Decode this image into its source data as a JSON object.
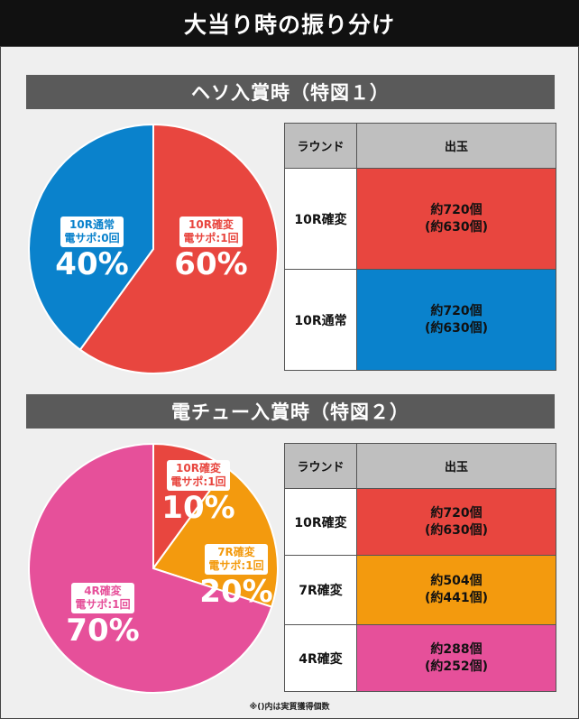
{
  "page": {
    "title": "大当り時の振り分け",
    "footnote": "※()内は実質獲得個数"
  },
  "colors": {
    "red": "#e8463f",
    "blue": "#0a82cc",
    "pink": "#e6509a",
    "orange": "#f39a0e",
    "gray_header": "#bfbfbf"
  },
  "sections": [
    {
      "heading": "ヘソ入賞時（特図１）",
      "chart_data": {
        "type": "pie",
        "slices": [
          {
            "line1": "10R確変",
            "line2": "電サポ:1回",
            "value": 60,
            "label": "60%",
            "color": "#e8463f"
          },
          {
            "line1": "10R通常",
            "line2": "電サポ:0回",
            "value": 40,
            "label": "40%",
            "color": "#0a82cc"
          }
        ]
      },
      "table": {
        "headers": [
          "ラウンド",
          "出玉"
        ],
        "rows": [
          {
            "round": "10R確変",
            "payout": "約720個",
            "real": "(約630個)",
            "color": "#e8463f"
          },
          {
            "round": "10R通常",
            "payout": "約720個",
            "real": "(約630個)",
            "color": "#0a82cc"
          }
        ]
      }
    },
    {
      "heading": "電チュー入賞時（特図２）",
      "chart_data": {
        "type": "pie",
        "slices": [
          {
            "line1": "10R確変",
            "line2": "電サポ:1回",
            "value": 10,
            "label": "10%",
            "color": "#e8463f"
          },
          {
            "line1": "7R確変",
            "line2": "電サポ:1回",
            "value": 20,
            "label": "20%",
            "color": "#f39a0e"
          },
          {
            "line1": "4R確変",
            "line2": "電サポ:1回",
            "value": 70,
            "label": "70%",
            "color": "#e6509a"
          }
        ]
      },
      "table": {
        "headers": [
          "ラウンド",
          "出玉"
        ],
        "rows": [
          {
            "round": "10R確変",
            "payout": "約720個",
            "real": "(約630個)",
            "color": "#e8463f"
          },
          {
            "round": "7R確変",
            "payout": "約504個",
            "real": "(約441個)",
            "color": "#f39a0e"
          },
          {
            "round": "4R確変",
            "payout": "約288個",
            "real": "(約252個)",
            "color": "#e6509a"
          }
        ]
      }
    }
  ]
}
